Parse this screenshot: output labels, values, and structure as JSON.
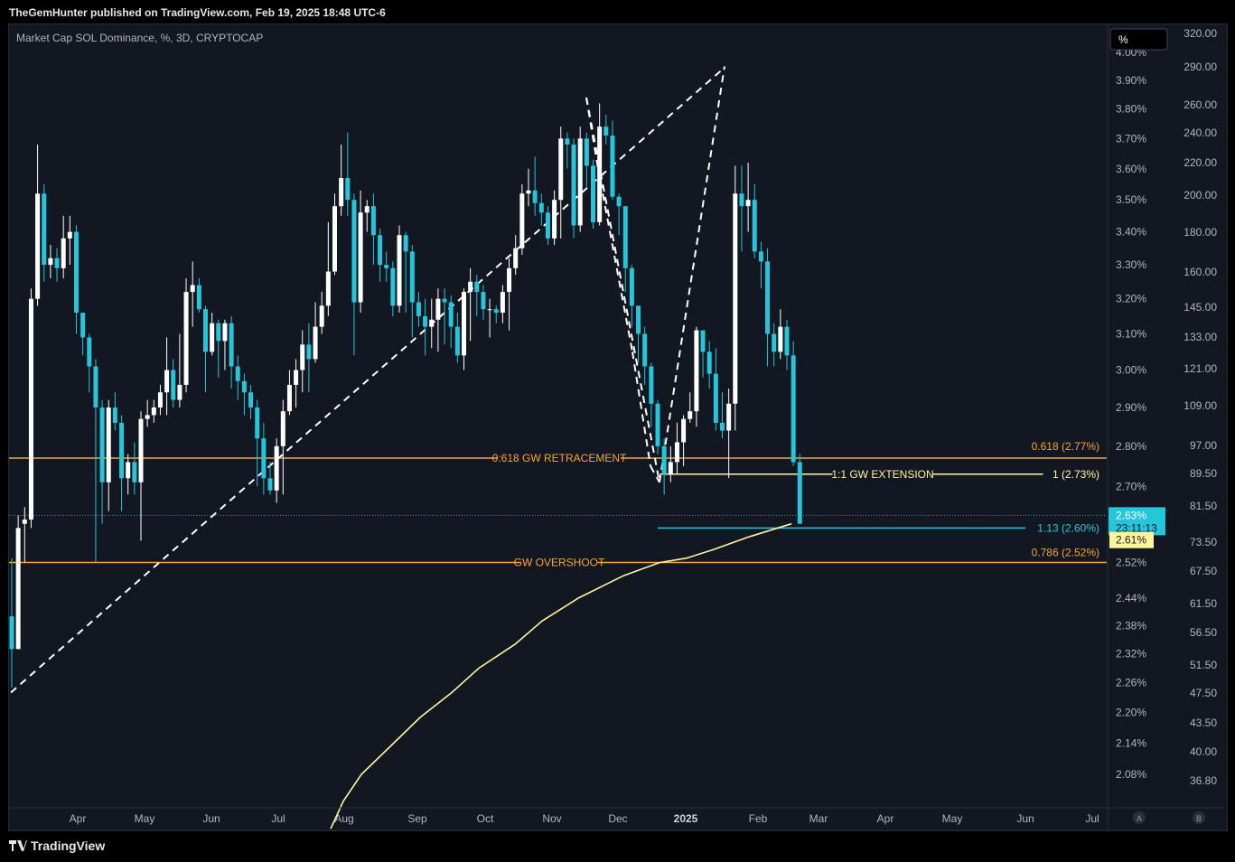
{
  "header": {
    "published": "TheGemHunter published on TradingView.com, Feb 19, 2025 18:48 UTC-6"
  },
  "chart_data": {
    "type": "candlestick",
    "title": "Market Cap SOL Dominance, %, 3D, CRYPTOCAP",
    "unit_button": "%",
    "x_labels": [
      "Apr",
      "May",
      "Jun",
      "Jul",
      "Aug",
      "Sep",
      "Oct",
      "Nov",
      "Dec",
      "2025",
      "Feb",
      "Mar",
      "Apr",
      "May",
      "Jun",
      "Jul"
    ],
    "y_axis_percent": [
      "4.00%",
      "3.90%",
      "3.80%",
      "3.70%",
      "3.60%",
      "3.50%",
      "3.40%",
      "3.30%",
      "3.20%",
      "3.10%",
      "3.00%",
      "2.90%",
      "2.80%",
      "2.70%",
      "2.52%",
      "2.44%",
      "2.38%",
      "2.32%",
      "2.26%",
      "2.20%",
      "2.14%",
      "2.08%"
    ],
    "y_axis_right": [
      "320.00",
      "290.00",
      "260.00",
      "240.00",
      "220.00",
      "200.00",
      "180.00",
      "160.00",
      "145.00",
      "133.00",
      "121.00",
      "109.00",
      "97.00",
      "89.50",
      "81.50",
      "73.50",
      "67.50",
      "61.50",
      "56.50",
      "51.50",
      "47.50",
      "43.50",
      "40.00",
      "36.80"
    ],
    "colors": {
      "up": "#ffffff",
      "down": "#26c6da",
      "fib": "#f7a534",
      "extension": "#fff59d",
      "target": "#26c6da",
      "ma": "#fff59d",
      "background": "#131722"
    },
    "candles": [
      [
        2.4,
        2.33,
        2.53,
        2.25
      ],
      [
        2.33,
        2.6,
        2.63,
        2.33
      ],
      [
        2.61,
        2.62,
        2.65,
        2.52
      ],
      [
        2.62,
        3.2,
        3.23,
        2.6
      ],
      [
        3.2,
        3.52,
        3.68,
        3.18
      ],
      [
        3.52,
        3.3,
        3.55,
        3.25
      ],
      [
        3.3,
        3.32,
        3.36,
        3.26
      ],
      [
        3.32,
        3.29,
        3.35,
        3.25
      ],
      [
        3.29,
        3.38,
        3.45,
        3.26
      ],
      [
        3.38,
        3.4,
        3.45,
        3.3
      ],
      [
        3.4,
        3.16,
        3.42,
        3.1
      ],
      [
        3.16,
        3.09,
        3.16,
        3.04
      ],
      [
        3.09,
        3.01,
        3.1,
        2.94
      ],
      [
        3.01,
        2.9,
        3.03,
        2.52
      ],
      [
        2.9,
        2.71,
        2.92,
        2.61
      ],
      [
        2.71,
        2.9,
        2.92,
        2.64
      ],
      [
        2.9,
        2.86,
        2.94,
        2.84
      ],
      [
        2.86,
        2.72,
        2.88,
        2.64
      ],
      [
        2.72,
        2.76,
        2.78,
        2.68
      ],
      [
        2.76,
        2.71,
        2.81,
        2.68
      ],
      [
        2.71,
        2.87,
        2.89,
        2.57
      ],
      [
        2.87,
        2.88,
        2.92,
        2.85
      ],
      [
        2.88,
        2.9,
        2.92,
        2.86
      ],
      [
        2.9,
        2.94,
        2.96,
        2.88
      ],
      [
        2.94,
        3.0,
        3.09,
        2.88
      ],
      [
        3.0,
        2.92,
        3.03,
        2.9
      ],
      [
        2.92,
        2.96,
        3.1,
        2.9
      ],
      [
        2.96,
        3.22,
        3.26,
        2.94
      ],
      [
        3.22,
        3.24,
        3.31,
        3.12
      ],
      [
        3.24,
        3.17,
        3.26,
        3.16
      ],
      [
        3.17,
        3.05,
        3.18,
        2.94
      ],
      [
        3.05,
        3.13,
        3.16,
        3.04
      ],
      [
        3.13,
        3.08,
        3.14,
        2.98
      ],
      [
        3.08,
        3.13,
        3.14,
        3.0
      ],
      [
        3.13,
        3.01,
        3.15,
        2.95
      ],
      [
        3.01,
        2.97,
        3.04,
        2.92
      ],
      [
        2.97,
        2.94,
        2.99,
        2.88
      ],
      [
        2.94,
        2.9,
        2.96,
        2.87
      ],
      [
        2.9,
        2.82,
        2.92,
        2.7
      ],
      [
        2.82,
        2.72,
        2.86,
        2.68
      ],
      [
        2.72,
        2.69,
        2.76,
        2.68
      ],
      [
        2.69,
        2.8,
        2.82,
        2.66
      ],
      [
        2.8,
        2.89,
        2.92,
        2.68
      ],
      [
        2.89,
        2.96,
        3.0,
        2.88
      ],
      [
        2.96,
        3.0,
        3.03,
        2.9
      ],
      [
        3.0,
        3.07,
        3.11,
        2.94
      ],
      [
        3.07,
        3.03,
        3.13,
        2.94
      ],
      [
        3.03,
        3.12,
        3.19,
        3.02
      ],
      [
        3.12,
        3.18,
        3.22,
        3.1
      ],
      [
        3.18,
        3.28,
        3.43,
        3.15
      ],
      [
        3.28,
        3.48,
        3.52,
        3.27
      ],
      [
        3.48,
        3.57,
        3.68,
        3.45
      ],
      [
        3.57,
        3.5,
        3.72,
        3.45
      ],
      [
        3.5,
        3.19,
        3.52,
        3.04
      ],
      [
        3.19,
        3.46,
        3.53,
        3.16
      ],
      [
        3.46,
        3.48,
        3.5,
        3.4
      ],
      [
        3.48,
        3.39,
        3.52,
        3.3
      ],
      [
        3.39,
        3.3,
        3.41,
        3.25
      ],
      [
        3.3,
        3.29,
        3.34,
        3.25
      ],
      [
        3.29,
        3.18,
        3.31,
        3.15
      ],
      [
        3.18,
        3.39,
        3.42,
        3.16
      ],
      [
        3.39,
        3.34,
        3.4,
        3.16
      ],
      [
        3.34,
        3.19,
        3.36,
        3.09
      ],
      [
        3.19,
        3.15,
        3.22,
        3.12
      ],
      [
        3.15,
        3.12,
        3.2,
        3.04
      ],
      [
        3.12,
        3.14,
        3.2,
        3.06
      ],
      [
        3.14,
        3.2,
        3.23,
        3.05
      ],
      [
        3.2,
        3.19,
        3.23,
        3.07
      ],
      [
        3.19,
        3.12,
        3.21,
        3.06
      ],
      [
        3.12,
        3.04,
        3.16,
        3.02
      ],
      [
        3.04,
        3.22,
        3.23,
        3.0
      ],
      [
        3.22,
        3.25,
        3.29,
        3.08
      ],
      [
        3.25,
        3.22,
        3.27,
        3.15
      ],
      [
        3.22,
        3.17,
        3.24,
        3.14
      ],
      [
        3.17,
        3.17,
        3.2,
        3.09
      ],
      [
        3.17,
        3.16,
        3.18,
        3.13
      ],
      [
        3.16,
        3.22,
        3.24,
        3.13
      ],
      [
        3.22,
        3.29,
        3.32,
        3.11
      ],
      [
        3.29,
        3.35,
        3.39,
        3.27
      ],
      [
        3.35,
        3.52,
        3.55,
        3.33
      ],
      [
        3.52,
        3.53,
        3.6,
        3.48
      ],
      [
        3.53,
        3.49,
        3.64,
        3.45
      ],
      [
        3.49,
        3.46,
        3.52,
        3.42
      ],
      [
        3.46,
        3.38,
        3.48,
        3.36
      ],
      [
        3.38,
        3.5,
        3.53,
        3.36
      ],
      [
        3.5,
        3.7,
        3.74,
        3.38
      ],
      [
        3.7,
        3.68,
        3.72,
        3.6
      ],
      [
        3.68,
        3.42,
        3.7,
        3.38
      ],
      [
        3.42,
        3.7,
        3.74,
        3.4
      ],
      [
        3.7,
        3.61,
        3.72,
        3.54
      ],
      [
        3.61,
        3.43,
        3.63,
        3.41
      ],
      [
        3.43,
        3.74,
        3.82,
        3.42
      ],
      [
        3.74,
        3.71,
        3.78,
        3.68
      ],
      [
        3.71,
        3.51,
        3.76,
        3.5
      ],
      [
        3.51,
        3.48,
        3.52,
        3.39
      ],
      [
        3.48,
        3.29,
        3.48,
        3.22
      ],
      [
        3.29,
        3.18,
        3.3,
        3.12
      ],
      [
        3.18,
        3.1,
        3.18,
        3.02
      ],
      [
        3.1,
        3.01,
        3.12,
        2.96
      ],
      [
        3.01,
        2.91,
        3.02,
        2.85
      ],
      [
        2.91,
        2.8,
        2.92,
        2.78
      ],
      [
        2.8,
        2.73,
        2.82,
        2.68
      ],
      [
        2.73,
        2.76,
        2.8,
        2.71
      ],
      [
        2.76,
        2.81,
        2.86,
        2.73
      ],
      [
        2.81,
        2.87,
        2.88,
        2.75
      ],
      [
        2.87,
        2.89,
        2.94,
        2.86
      ],
      [
        2.89,
        3.11,
        3.12,
        2.85
      ],
      [
        3.11,
        3.05,
        3.1,
        2.98
      ],
      [
        3.05,
        2.99,
        3.08,
        2.95
      ],
      [
        2.99,
        2.86,
        3.06,
        2.84
      ],
      [
        2.86,
        2.84,
        2.94,
        2.82
      ],
      [
        2.84,
        2.91,
        2.95,
        2.72
      ],
      [
        2.91,
        3.52,
        3.61,
        2.84
      ],
      [
        3.52,
        3.48,
        3.61,
        3.34
      ],
      [
        3.48,
        3.5,
        3.62,
        3.4
      ],
      [
        3.5,
        3.34,
        3.55,
        3.32
      ],
      [
        3.34,
        3.31,
        3.37,
        3.23
      ],
      [
        3.31,
        3.1,
        3.35,
        3.01
      ],
      [
        3.1,
        3.05,
        3.13,
        3.01
      ],
      [
        3.05,
        3.12,
        3.17,
        3.03
      ],
      [
        3.12,
        3.04,
        3.14,
        3.0
      ],
      [
        3.04,
        2.76,
        3.08,
        2.75
      ],
      [
        2.76,
        2.61,
        2.78,
        2.61
      ]
    ],
    "levels": [
      {
        "label": "0:618 GW RETRACEMENT",
        "right_label": "0.618 (2.77%)",
        "value": 2.77,
        "color": "#f7a534"
      },
      {
        "label": "1:1 GW EXTENSION",
        "right_label": "1 (2.73%)",
        "value": 2.73,
        "color": "#fff59d"
      },
      {
        "label": "",
        "right_label": "1.13 (2.60%)",
        "value": 2.6,
        "color": "#26c6da"
      },
      {
        "label": "GW OVERSHOOT",
        "right_label": "0.786 (2.52%)",
        "value": 2.52,
        "color": "#f7a534"
      }
    ],
    "price_tag": {
      "value": "2.63%",
      "countdown": "23:11:13"
    },
    "ma_tag": "2.61%",
    "moving_average": [
      [
        "Aug",
        1.98
      ],
      [
        "Aug",
        2.03
      ],
      [
        "Aug",
        2.08
      ],
      [
        "Sep",
        2.13
      ],
      [
        "Sep",
        2.19
      ],
      [
        "Sep",
        2.24
      ],
      [
        "Oct",
        2.29
      ],
      [
        "Oct",
        2.34
      ],
      [
        "Nov",
        2.39
      ],
      [
        "Nov",
        2.44
      ],
      [
        "Dec",
        2.49
      ],
      [
        "Dec",
        2.52
      ],
      [
        "Dec",
        2.53
      ],
      [
        "2025",
        2.55
      ],
      [
        "2025",
        2.58
      ],
      [
        "Feb",
        2.61
      ]
    ],
    "pattern_lines": "dashed white",
    "log_scale": true
  },
  "footer": {
    "brand": "TradingView"
  },
  "axis_buttons": [
    "A",
    "B"
  ]
}
